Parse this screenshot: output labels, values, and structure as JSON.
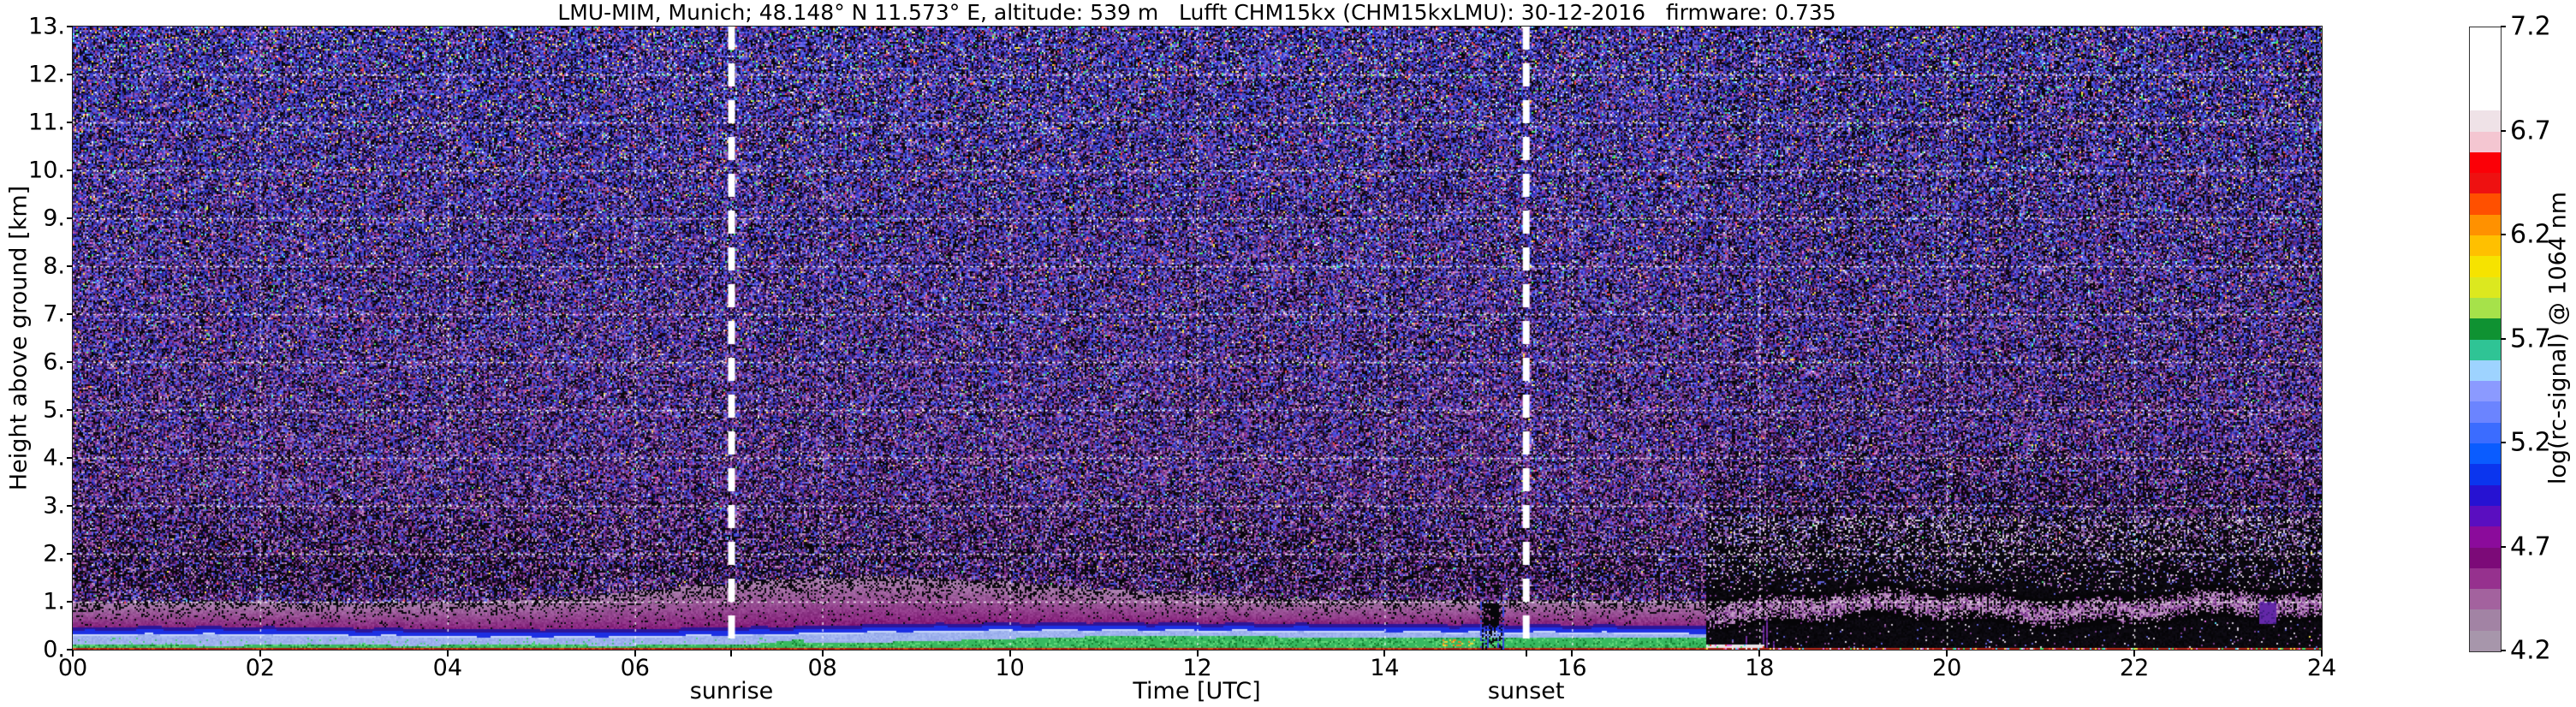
{
  "title": "LMU-MIM, Munich; 48.148° N 11.573° E, altitude: 539 m   Lufft CHM15kx (CHM15kxLMU): 30-12-2016   firmware: 0.735",
  "axes": {
    "y_label": "Height above ground [km]",
    "x_label": "Time [UTC]",
    "y_ticks": [
      "13.",
      "12.",
      "11.",
      "10.",
      "9.",
      "8.",
      "7.",
      "6.",
      "5.",
      "4.",
      "3.",
      "2.",
      "1.",
      "0."
    ],
    "y_tick_values_km": [
      13,
      12,
      11,
      10,
      9,
      8,
      7,
      6,
      5,
      4,
      3,
      2,
      1,
      0
    ],
    "x_ticks": [
      "00",
      "02",
      "04",
      "06",
      "08",
      "10",
      "12",
      "14",
      "16",
      "18",
      "20",
      "22",
      "24"
    ],
    "x_tick_values_hours": [
      0,
      2,
      4,
      6,
      8,
      10,
      12,
      14,
      16,
      18,
      20,
      22,
      24
    ],
    "x_range_hours": [
      0,
      24
    ],
    "y_range_km": [
      0,
      13
    ]
  },
  "annotations": {
    "sunrise": {
      "label": "sunrise",
      "hour_utc": 7.03
    },
    "sunset": {
      "label": "sunset",
      "hour_utc": 15.51
    }
  },
  "colorbar": {
    "label": "log(rc-signal) @ 1064 nm",
    "tick_labels": [
      "7.2",
      "6.7",
      "6.2",
      "5.7",
      "5.2",
      "4.7",
      "4.2"
    ],
    "tick_values": [
      7.2,
      6.7,
      6.2,
      5.7,
      5.2,
      4.7,
      4.2
    ],
    "range": [
      4.2,
      7.2
    ],
    "steps_bottom_to_top": [
      "#a796ab",
      "#a283a4",
      "#a3629e",
      "#96318e",
      "#7c0a78",
      "#8b0b9b",
      "#5a0ec0",
      "#2612d2",
      "#0b35ee",
      "#0a5cff",
      "#3b6cff",
      "#6b84ff",
      "#8b9aff",
      "#9ed3ff",
      "#2fc495",
      "#0f9232",
      "#a6e24a",
      "#dce81f",
      "#f6e300",
      "#ffc000",
      "#ff9100",
      "#ff5000",
      "#ee1111",
      "#fb0007",
      "#f4c6d1",
      "#efe2e7",
      "#ffffff",
      "#ffffff",
      "#ffffff",
      "#ffffff"
    ]
  },
  "colors": {
    "background": "#ffffff",
    "grid": "#ffffff",
    "annotation_line": "#ffffff",
    "axis": "#222222",
    "noise_blue": "#3c3cc3",
    "noise_purple": "#78329b",
    "haze_purple": "#80126e",
    "aerosol_green": "#37b95f",
    "aerosol_lightblue": "#9eb2ee",
    "aerosol_blue_line": "#1c30e4",
    "ground_red_line": "#c02814",
    "ground_yellow_line": "#ded72d"
  },
  "chart_data": {
    "type": "heatmap",
    "title": "LMU-MIM, Munich; 48.148° N 11.573° E, altitude: 539 m   Lufft CHM15kx (CHM15kxLMU): 30-12-2016   firmware: 0.735",
    "xlabel": "Time [UTC]",
    "ylabel": "Height above ground [km]",
    "xlim": [
      0,
      24
    ],
    "ylim": [
      0,
      13
    ],
    "grid": true,
    "legend_position": "right-colorbar",
    "colorbar": {
      "label": "log(rc-signal) @ 1064 nm",
      "min": 4.2,
      "max": 7.2,
      "ticks": [
        4.2,
        4.7,
        5.2,
        5.7,
        6.2,
        6.7,
        7.2
      ]
    },
    "annotations": [
      {
        "label": "sunrise",
        "hour_utc": 7.03,
        "style": "thick white dashed vertical line"
      },
      {
        "label": "sunset",
        "hour_utc": 15.51,
        "style": "thick white dashed vertical line"
      }
    ],
    "series": [
      {
        "name": "aerosol_layer_top_blue_band_km",
        "x_hours": [
          0,
          2,
          4,
          6,
          8,
          10,
          12,
          14,
          16,
          17.4
        ],
        "values": [
          0.38,
          0.36,
          0.37,
          0.39,
          0.45,
          0.5,
          0.5,
          0.48,
          0.4,
          0.35
        ]
      },
      {
        "name": "purple_haze_top_km",
        "x_hours": [
          0,
          2,
          4,
          6,
          8,
          10,
          12,
          14,
          16,
          17.4
        ],
        "values": [
          1.0,
          0.95,
          1.0,
          1.2,
          1.5,
          1.35,
          1.25,
          1.3,
          1.2,
          1.1
        ]
      },
      {
        "name": "green_surface_layer_top_km",
        "x_hours": [
          0,
          2,
          4,
          6,
          8,
          10,
          12,
          14,
          16,
          17.4
        ],
        "values": [
          0.1,
          0.1,
          0.1,
          0.1,
          0.25,
          0.22,
          0.25,
          0.35,
          0.3,
          0.25
        ]
      },
      {
        "name": "night_residual_band_km_range",
        "x_hours": [
          18,
          20,
          22,
          24
        ],
        "values": [
          [
            0.65,
            1.2
          ],
          [
            0.65,
            1.15
          ],
          [
            0.6,
            1.1
          ],
          [
            0.55,
            1.05
          ]
        ]
      }
    ],
    "features": [
      "Dense blue/purple speckle noise fills the free troposphere from ~2.5 km to 13 km at all times, with sparse bright green/yellow/red/cyan/white pixels increasing with height",
      "Smooth magenta-purple haze layer from the blue band top up to ~1.0-1.5 km during 00:00-17:26",
      "Surface aerosol structure 00:00-17:26: thin red/orange ground line, yellow line (~0.03-0.05 km, mainly before sunrise), green layer, pale periwinkle-blue layer, capped by a bright blue wavy line at 0.35-0.5 km",
      "Signal cutoff at ~17:26: below ~1.2 km becomes black for the rest of the day; pinkish-mauve speckle band persists at ~0.6-1.2 km",
      "Short violet vertical streaks near the ground ~17:30-18:20",
      "Dark/blue vertical disturbance with black blob at 0.5-1.0 km around 15:00-15:15; orange/yellow dots near 0.1-0.2 km around 14:40-14:55",
      "Violet-blue blob at 0.55-1.0 km around 23:20-23:30",
      "White dotted gridlines every 1 km and every 2 h"
    ]
  }
}
